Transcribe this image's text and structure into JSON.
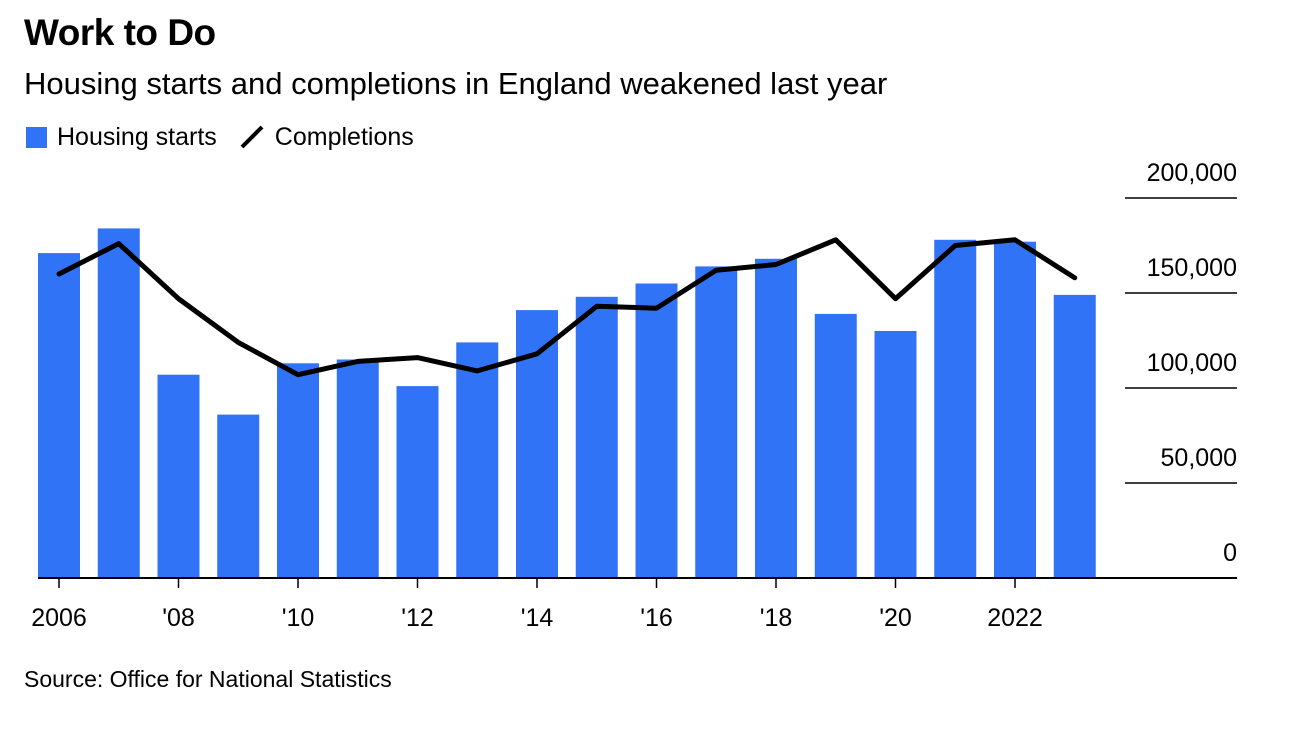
{
  "title": "Work to Do",
  "subtitle": "Housing starts and completions in England weakened last year",
  "source": "Source: Office for National Statistics",
  "colors": {
    "bars": "#3173f6",
    "line": "#000000"
  },
  "chart_data": {
    "type": "bar",
    "x": [
      2006,
      2007,
      2008,
      2009,
      2010,
      2011,
      2012,
      2013,
      2014,
      2015,
      2016,
      2017,
      2018,
      2019,
      2020,
      2021,
      2022,
      2023
    ],
    "x_tick_labels": [
      {
        "x": 2006,
        "label": "2006"
      },
      {
        "x": 2008,
        "label": "'08"
      },
      {
        "x": 2010,
        "label": "'10"
      },
      {
        "x": 2012,
        "label": "'12"
      },
      {
        "x": 2014,
        "label": "'14"
      },
      {
        "x": 2016,
        "label": "'16"
      },
      {
        "x": 2018,
        "label": "'18"
      },
      {
        "x": 2020,
        "label": "'20"
      },
      {
        "x": 2022,
        "label": "2022"
      }
    ],
    "y_ticks": [
      {
        "value": 0,
        "label": "0"
      },
      {
        "value": 50000,
        "label": "50,000"
      },
      {
        "value": 100000,
        "label": "100,000"
      },
      {
        "value": 150000,
        "label": "150,000"
      },
      {
        "value": 200000,
        "label": "200,000"
      }
    ],
    "ylim": [
      0,
      200000
    ],
    "y_axis_position": "right",
    "legend_position": "top-left",
    "series": [
      {
        "name": "Housing starts",
        "type": "bar",
        "values": [
          171000,
          184000,
          107000,
          86000,
          113000,
          115000,
          101000,
          124000,
          141000,
          148000,
          155000,
          164000,
          168000,
          139000,
          130000,
          178000,
          177000,
          149000
        ]
      },
      {
        "name": "Completions",
        "type": "line",
        "values": [
          160000,
          176000,
          147000,
          124000,
          107000,
          114000,
          116000,
          109000,
          118000,
          143000,
          142000,
          162000,
          165000,
          178000,
          147000,
          175000,
          178000,
          158000
        ]
      }
    ]
  }
}
